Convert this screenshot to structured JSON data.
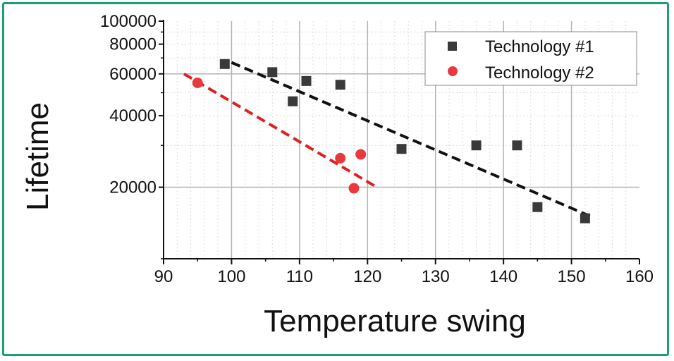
{
  "chart_data": {
    "type": "scatter",
    "title": "",
    "xlabel": "Temperature swing",
    "ylabel": "Lifetime",
    "xlim": [
      90,
      160
    ],
    "ylim": [
      10000,
      100000
    ],
    "yscale": "log",
    "xticks": [
      90,
      100,
      110,
      120,
      130,
      140,
      150,
      160
    ],
    "yticks": [
      20000,
      40000,
      60000,
      80000,
      100000
    ],
    "grid": true,
    "legend_position": "top-right",
    "series": [
      {
        "name": "Technology #1",
        "marker": "square",
        "color": "#3a3a3a",
        "points": [
          {
            "x": 99,
            "y": 66000
          },
          {
            "x": 106,
            "y": 61000
          },
          {
            "x": 109,
            "y": 46000
          },
          {
            "x": 111,
            "y": 56000
          },
          {
            "x": 116,
            "y": 54000
          },
          {
            "x": 125,
            "y": 29000
          },
          {
            "x": 136,
            "y": 30000
          },
          {
            "x": 142,
            "y": 30000
          },
          {
            "x": 145,
            "y": 16500
          },
          {
            "x": 152,
            "y": 14800
          }
        ],
        "trend": {
          "style": "dashed",
          "color": "#111111",
          "from": [
            100,
            67000
          ],
          "to": [
            153,
            15000
          ]
        }
      },
      {
        "name": "Technology #2",
        "marker": "circle",
        "color": "#e8393f",
        "points": [
          {
            "x": 95,
            "y": 55000
          },
          {
            "x": 116,
            "y": 26500
          },
          {
            "x": 119,
            "y": 27500
          },
          {
            "x": 118,
            "y": 19800
          }
        ],
        "trend": {
          "style": "dashed",
          "color": "#e02020",
          "from": [
            93,
            60000
          ],
          "to": [
            121,
            20300
          ]
        }
      }
    ]
  }
}
